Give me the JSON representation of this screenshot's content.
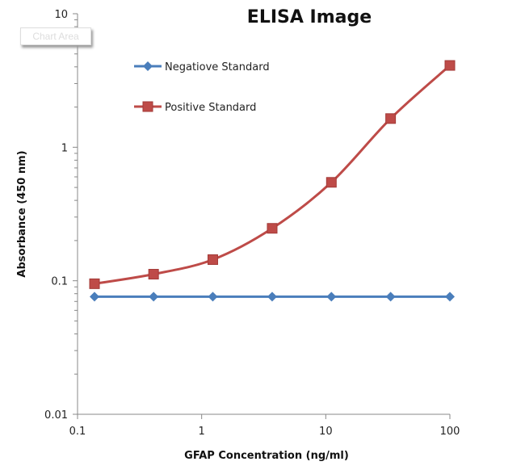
{
  "chart_data": {
    "type": "line",
    "title": "ELISA Image",
    "xlabel": "GFAP Concentration (ng/ml)",
    "ylabel": "Absorbance (450 nm)",
    "x_scale": "log",
    "y_scale": "log",
    "xlim": [
      0.1,
      100
    ],
    "ylim": [
      0.01,
      10
    ],
    "x_ticks": [
      "0.1",
      "1",
      "10",
      "100"
    ],
    "y_ticks": [
      "0.01",
      "0.1",
      "1",
      "10"
    ],
    "grid": false,
    "legend": "top-left",
    "x": [
      0.137,
      0.41,
      1.23,
      3.7,
      11.1,
      33.3,
      100
    ],
    "series": [
      {
        "name": "Negatiove Standard",
        "color": "#4a7ebb",
        "marker": "diamond",
        "values": [
          0.076,
          0.076,
          0.076,
          0.076,
          0.076,
          0.076,
          0.076
        ]
      },
      {
        "name": "Positive Standard",
        "color": "#be4b48",
        "marker": "square",
        "smooth": true,
        "values": [
          0.095,
          0.112,
          0.144,
          0.247,
          0.546,
          1.64,
          4.1
        ]
      }
    ]
  },
  "tooltip": "Chart Area"
}
